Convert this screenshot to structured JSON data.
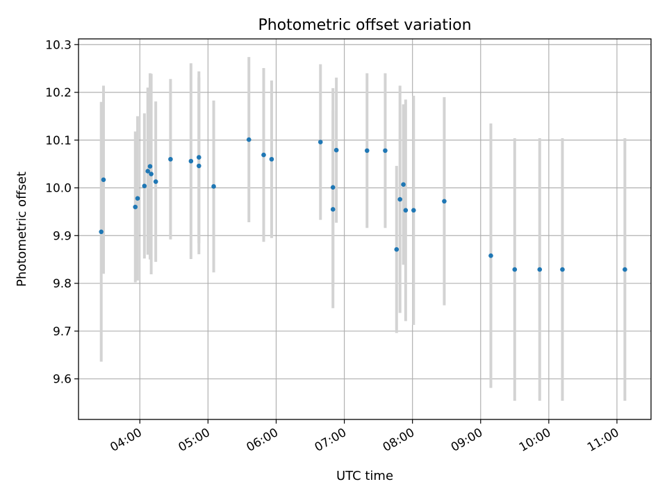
{
  "chart_data": {
    "type": "scatter",
    "title": "Photometric offset variation",
    "xlabel": "UTC time",
    "ylabel": "Photometric offset",
    "x_unit": "HH:MM (UTC)",
    "xlim": [
      "03:06",
      "11:30"
    ],
    "ylim": [
      9.515,
      10.312
    ],
    "grid": true,
    "x_ticks": [
      "04:00",
      "05:00",
      "06:00",
      "07:00",
      "08:00",
      "09:00",
      "10:00",
      "11:00"
    ],
    "y_ticks": [
      "9.6",
      "9.7",
      "9.8",
      "9.9",
      "10.0",
      "10.1",
      "10.2",
      "10.3"
    ],
    "colors": {
      "point": "#1f77b4",
      "errorbar": "#d3d3d3",
      "grid": "#b0b0b0",
      "axis": "#000000"
    },
    "series": [
      {
        "points": [
          {
            "x": "03:26",
            "y": 9.908,
            "yerr": 0.272
          },
          {
            "x": "03:28",
            "y": 10.017,
            "yerr": 0.197
          },
          {
            "x": "03:56",
            "y": 9.96,
            "yerr": 0.158
          },
          {
            "x": "03:58",
            "y": 9.978,
            "yerr": 0.172
          },
          {
            "x": "04:04",
            "y": 10.004,
            "yerr": 0.152
          },
          {
            "x": "04:07",
            "y": 10.035,
            "yerr": 0.175
          },
          {
            "x": "04:09",
            "y": 10.045,
            "yerr": 0.195
          },
          {
            "x": "04:10",
            "y": 10.029,
            "yerr": 0.21
          },
          {
            "x": "04:14",
            "y": 10.013,
            "yerr": 0.168
          },
          {
            "x": "04:27",
            "y": 10.06,
            "yerr": 0.168
          },
          {
            "x": "04:45",
            "y": 10.056,
            "yerr": 0.205
          },
          {
            "x": "04:52",
            "y": 10.064,
            "yerr": 0.18
          },
          {
            "x": "04:52",
            "y": 10.046,
            "yerr": 0.185
          },
          {
            "x": "05:05",
            "y": 10.003,
            "yerr": 0.18
          },
          {
            "x": "05:36",
            "y": 10.101,
            "yerr": 0.173
          },
          {
            "x": "05:49",
            "y": 10.069,
            "yerr": 0.182
          },
          {
            "x": "05:56",
            "y": 10.06,
            "yerr": 0.165
          },
          {
            "x": "06:39",
            "y": 10.096,
            "yerr": 0.163
          },
          {
            "x": "06:50",
            "y": 10.001,
            "yerr": 0.208
          },
          {
            "x": "06:50",
            "y": 9.955,
            "yerr": 0.207
          },
          {
            "x": "06:53",
            "y": 10.079,
            "yerr": 0.152
          },
          {
            "x": "07:20",
            "y": 10.078,
            "yerr": 0.162
          },
          {
            "x": "07:36",
            "y": 10.078,
            "yerr": 0.162
          },
          {
            "x": "07:46",
            "y": 9.871,
            "yerr": 0.175
          },
          {
            "x": "07:49",
            "y": 9.976,
            "yerr": 0.238
          },
          {
            "x": "07:52",
            "y": 10.007,
            "yerr": 0.168
          },
          {
            "x": "07:54",
            "y": 9.953,
            "yerr": 0.232
          },
          {
            "x": "08:01",
            "y": 9.953,
            "yerr": 0.24
          },
          {
            "x": "08:28",
            "y": 9.972,
            "yerr": 0.218
          },
          {
            "x": "09:09",
            "y": 9.858,
            "yerr": 0.277
          },
          {
            "x": "09:30",
            "y": 9.829,
            "yerr": 0.275
          },
          {
            "x": "09:52",
            "y": 9.829,
            "yerr": 0.275
          },
          {
            "x": "10:12",
            "y": 9.829,
            "yerr": 0.275
          },
          {
            "x": "11:07",
            "y": 9.829,
            "yerr": 0.275
          }
        ]
      }
    ]
  }
}
